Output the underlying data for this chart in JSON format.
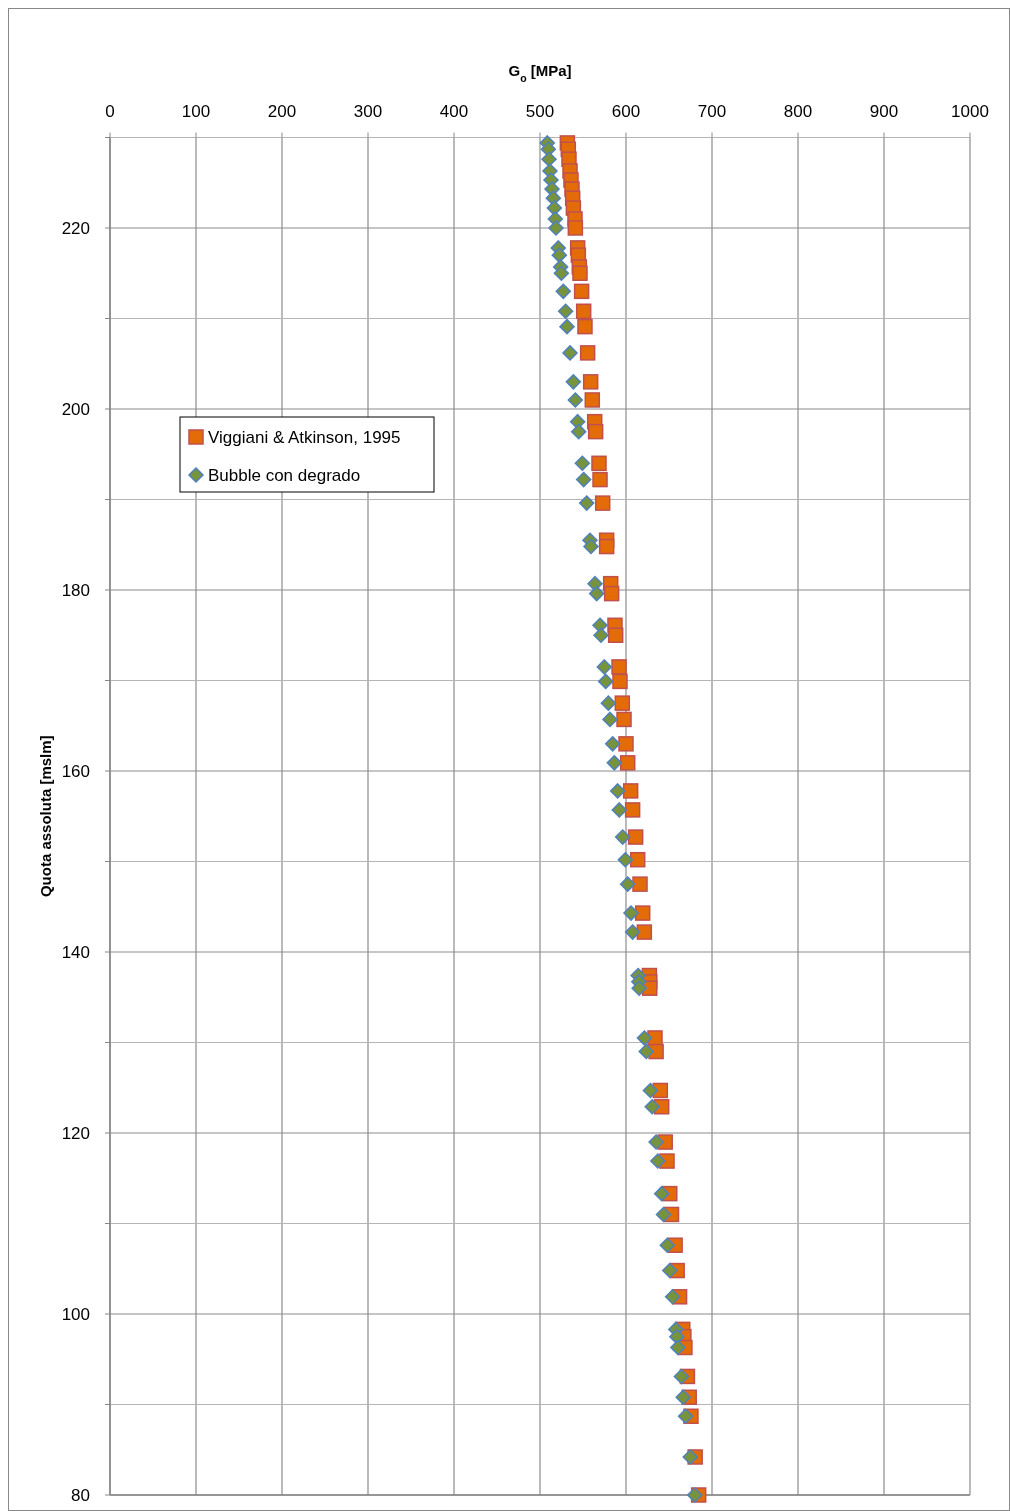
{
  "chart_data": {
    "type": "scatter",
    "xlabel": "G$_{o}$ [MPa]",
    "ylabel": "Quota assoluta  [mslm]",
    "xlim": [
      0,
      1000
    ],
    "xticks": [
      0,
      100,
      200,
      300,
      400,
      500,
      600,
      700,
      800,
      900,
      1000
    ],
    "ylim": [
      80,
      230
    ],
    "yticks": [
      80,
      {
        "value": 90,
        "label": null
      },
      100,
      {
        "value": 110,
        "label": null
      },
      120,
      {
        "value": 130,
        "label": null
      },
      140,
      {
        "value": 150,
        "label": null
      },
      160,
      {
        "value": 170,
        "label": null
      },
      180,
      {
        "value": 190,
        "label": null
      },
      200,
      {
        "value": 210,
        "label": null
      },
      220,
      {
        "value": 230,
        "label": null
      }
    ],
    "grid": true,
    "legend": "left",
    "series": [
      {
        "name": "Viggiani & Atkinson, 1995",
        "color": "#e36c09",
        "marker": "square",
        "x": [
          531.8,
          532.9,
          533.7,
          534.9,
          536.0,
          537.2,
          538.0,
          538.8,
          540.7,
          541.1,
          543.8,
          544.6,
          545.7,
          546.5,
          548.4,
          550.8,
          552.3,
          555.4,
          558.9,
          560.8,
          563.6,
          564.7,
          568.6,
          569.8,
          572.9,
          577.5,
          577.5,
          582.2,
          583.3,
          587.2,
          588.0,
          591.9,
          593.0,
          595.7,
          597.7,
          600.0,
          602.0,
          605.4,
          607.7,
          611.2,
          613.6,
          616.3,
          619.4,
          621.3,
          627.2,
          627.6,
          627.6,
          633.7,
          635.0,
          639.9,
          641.5,
          645.6,
          647.7,
          650.9,
          652.9,
          657.1,
          659.5,
          662.3,
          666.0,
          667.3,
          668.5,
          671.4,
          673.5,
          675.5,
          680.4,
          684.5
        ],
        "values": [
          229.4,
          228.7,
          227.6,
          226.3,
          225.3,
          224.3,
          223.3,
          222.2,
          221.0,
          220.0,
          217.8,
          217.0,
          215.7,
          215.0,
          213.0,
          210.8,
          209.1,
          206.2,
          203.0,
          201.0,
          198.6,
          197.5,
          194.0,
          192.2,
          189.6,
          185.5,
          184.8,
          180.7,
          179.6,
          176.1,
          175.0,
          171.5,
          169.9,
          167.5,
          165.7,
          163.0,
          160.9,
          157.8,
          155.7,
          152.7,
          150.2,
          147.5,
          144.3,
          142.2,
          137.4,
          136.7,
          136.0,
          130.5,
          129.0,
          124.7,
          122.9,
          119.0,
          116.9,
          113.3,
          111.0,
          107.6,
          104.8,
          101.9,
          98.3,
          97.5,
          96.3,
          93.1,
          90.8,
          88.7,
          84.2,
          80.0
        ]
      },
      {
        "name": "Bubble con degrado",
        "color": "#77933c",
        "marker": "diamond",
        "x": [
          508.5,
          509.7,
          510.5,
          511.6,
          512.8,
          514.0,
          515.5,
          516.7,
          517.8,
          518.6,
          521.3,
          522.5,
          524.0,
          524.8,
          527.1,
          529.8,
          531.4,
          534.9,
          538.8,
          541.1,
          543.8,
          545.0,
          549.2,
          550.8,
          554.3,
          558.1,
          559.3,
          564.0,
          565.9,
          569.8,
          570.9,
          574.8,
          576.4,
          579.5,
          581.4,
          584.5,
          586.4,
          590.3,
          592.2,
          596.1,
          599.2,
          601.9,
          605.8,
          607.7,
          614.1,
          614.9,
          615.3,
          621.4,
          623.5,
          628.4,
          630.5,
          635.0,
          637.0,
          641.5,
          643.6,
          648.0,
          650.9,
          654.2,
          657.9,
          659.1,
          660.3,
          664.4,
          666.5,
          669.3,
          674.7,
          679.9
        ],
        "values": [
          229.4,
          228.7,
          227.6,
          226.3,
          225.3,
          224.3,
          223.3,
          222.2,
          221.0,
          220.0,
          217.8,
          217.0,
          215.7,
          215.0,
          213.0,
          210.8,
          209.1,
          206.2,
          203.0,
          201.0,
          198.6,
          197.5,
          194.0,
          192.2,
          189.6,
          185.5,
          184.8,
          180.7,
          179.6,
          176.1,
          175.0,
          171.5,
          169.9,
          167.5,
          165.7,
          163.0,
          160.9,
          157.8,
          155.7,
          152.7,
          150.2,
          147.5,
          144.3,
          142.2,
          137.4,
          136.7,
          136.0,
          130.5,
          129.0,
          124.7,
          122.9,
          119.0,
          116.9,
          113.3,
          111.0,
          107.6,
          104.8,
          101.9,
          98.3,
          97.5,
          96.3,
          93.1,
          90.8,
          88.7,
          84.2,
          80.0
        ]
      }
    ]
  }
}
